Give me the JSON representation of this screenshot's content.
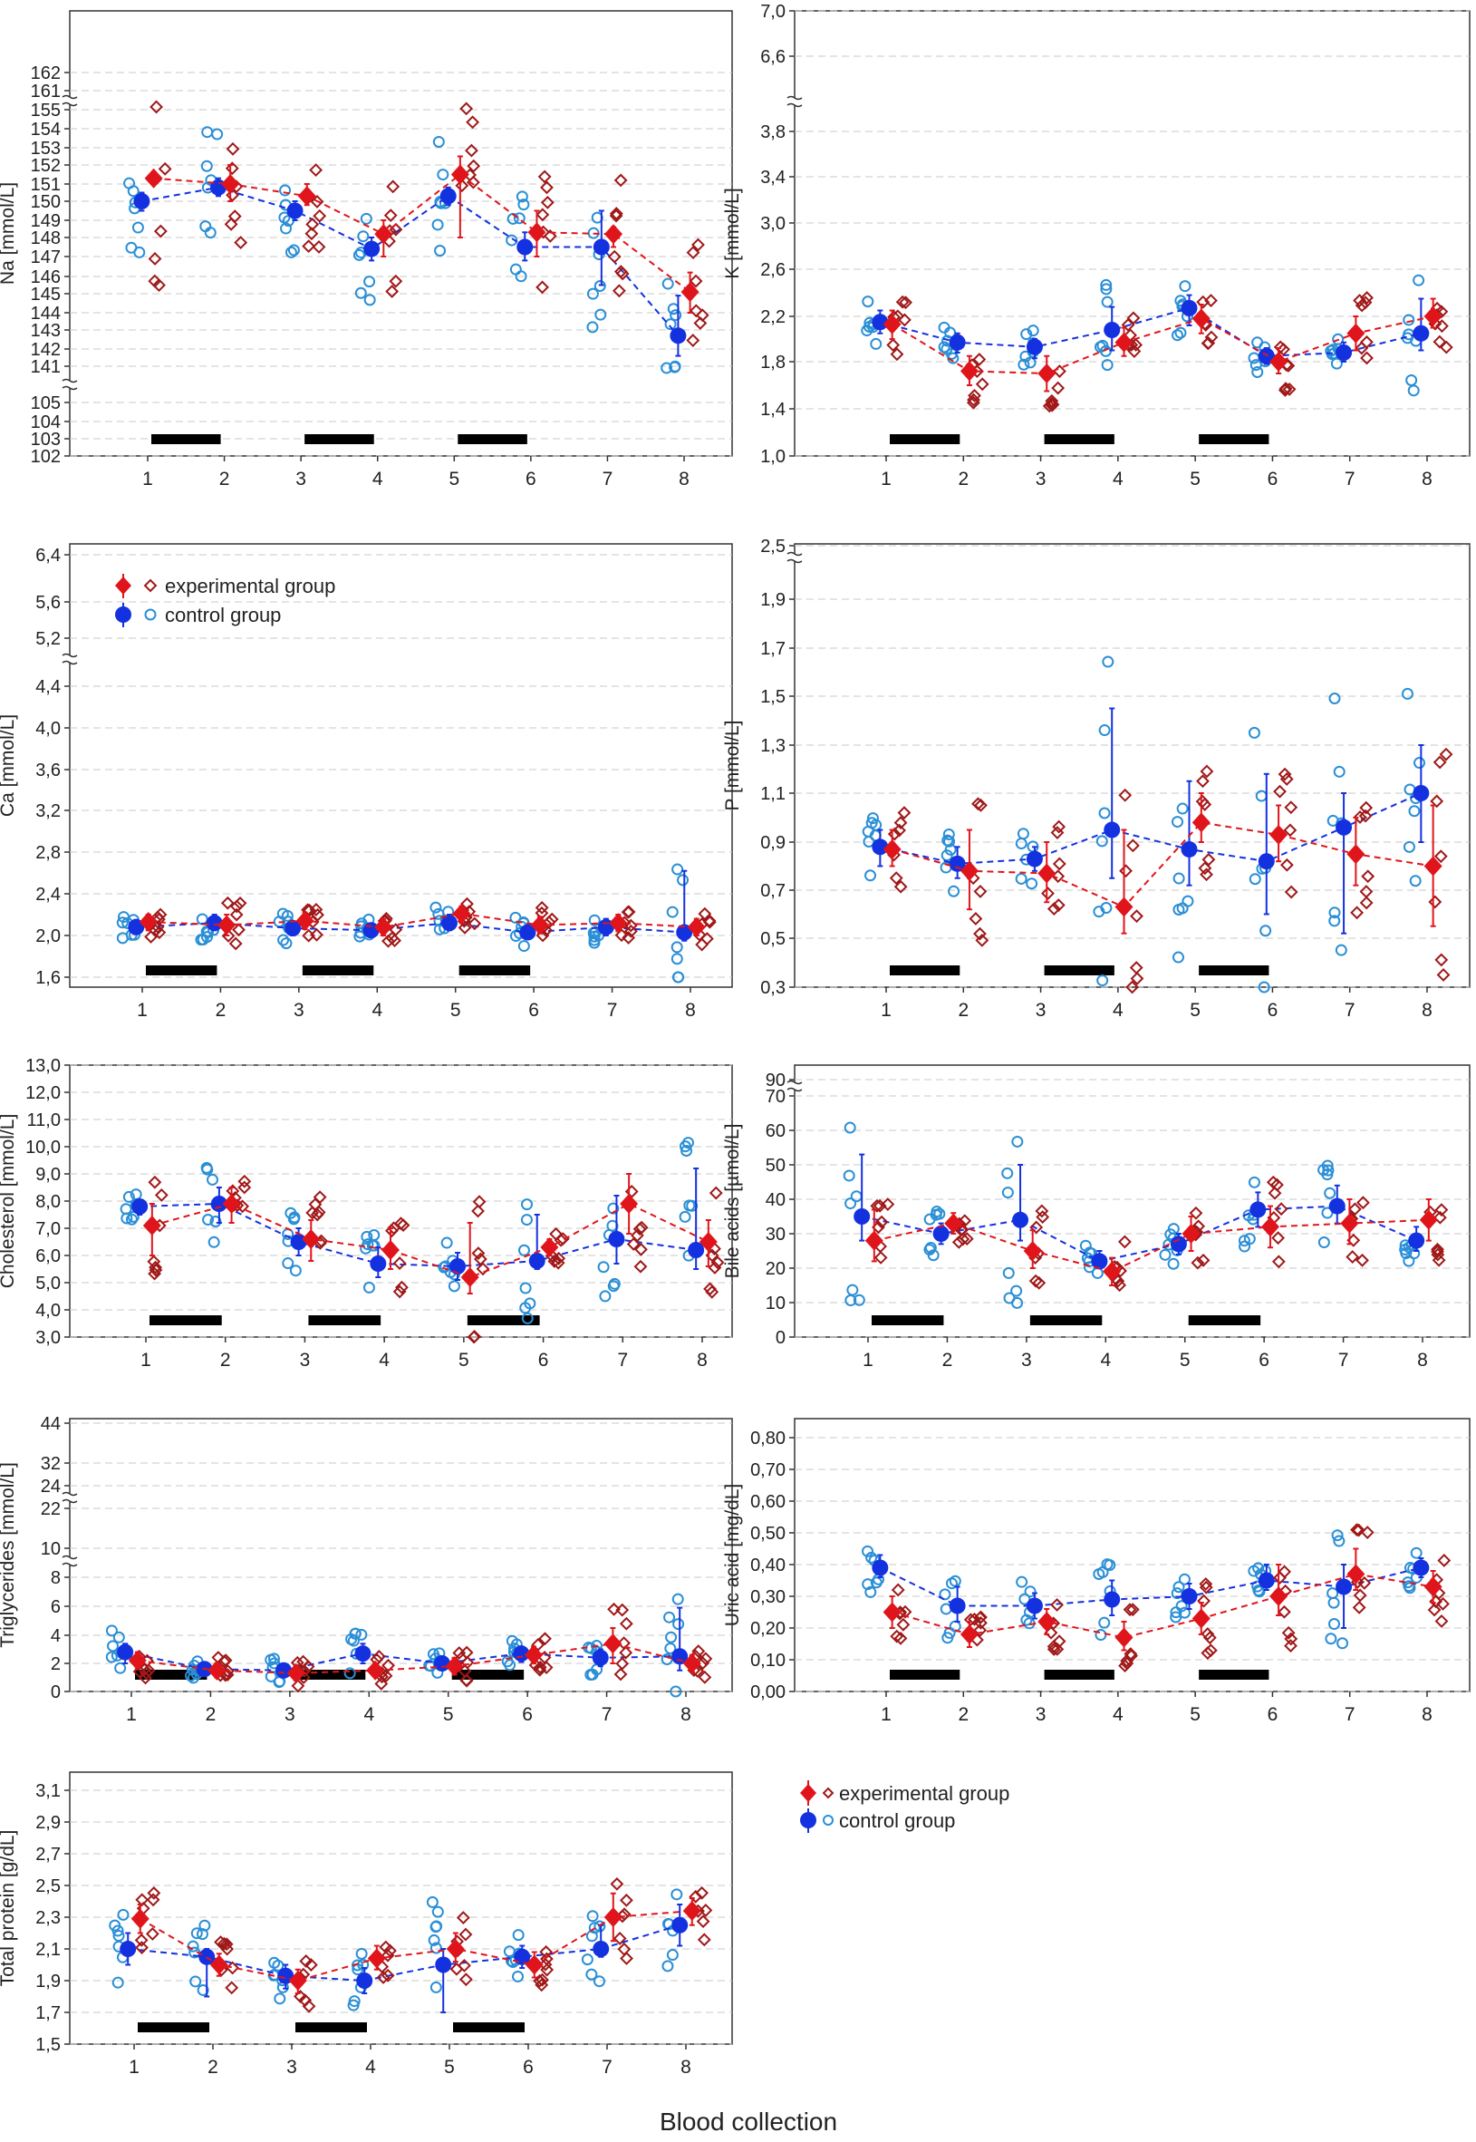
{
  "figure": {
    "xlabel": "Blood collection",
    "legend": {
      "experimental_label": "experimental group",
      "control_label": "control group"
    },
    "colors": {
      "experimental": "#e0151b",
      "experimental_dark": "#a01818",
      "control": "#1431e0",
      "control_light": "#2a8fd6",
      "bar": "#000000",
      "grid": "#c8c8c8"
    }
  },
  "chart_data": [
    {
      "id": "na",
      "type": "scatter",
      "ylabel": "Na [mmol/L]",
      "categories": [
        "1",
        "2",
        "3",
        "4",
        "5",
        "6",
        "7",
        "8"
      ],
      "yticks": [
        102,
        103,
        104,
        105,
        141,
        142,
        143,
        144,
        145,
        146,
        147,
        148,
        149,
        150,
        151,
        152,
        153,
        154,
        155,
        161,
        162
      ],
      "yticklabels": [
        "102",
        "103",
        "104",
        "105",
        "141",
        "142",
        "143",
        "144",
        "145",
        "146",
        "147",
        "148",
        "149",
        "150",
        "151",
        "152",
        "153",
        "154",
        "155",
        "161",
        "162"
      ],
      "series": [
        {
          "name": "experimental group",
          "means": [
            151.3,
            151.0,
            150.3,
            148.2,
            151.5,
            148.3,
            148.2,
            145.1
          ],
          "lower": [
            null,
            150.0,
            149.8,
            147.0,
            148.0,
            147.0,
            147.5,
            144.0
          ],
          "upper": [
            null,
            152.0,
            151.0,
            149.0,
            152.5,
            149.5,
            148.6,
            146.2
          ]
        },
        {
          "name": "control group",
          "means": [
            150.0,
            150.8,
            149.5,
            147.4,
            150.3,
            147.5,
            147.5,
            142.7
          ],
          "lower": [
            149.5,
            150.3,
            149.0,
            146.8,
            149.8,
            146.8,
            145.5,
            141.6
          ],
          "upper": [
            150.5,
            151.3,
            150.0,
            148.0,
            150.8,
            148.3,
            149.5,
            144.9
          ]
        }
      ],
      "training_bars": [
        [
          1,
          2
        ],
        [
          3,
          4
        ],
        [
          5,
          6
        ]
      ]
    },
    {
      "id": "k",
      "type": "scatter",
      "ylabel": "K [mmol/L]",
      "categories": [
        "1",
        "2",
        "3",
        "4",
        "5",
        "6",
        "7",
        "8"
      ],
      "yticks": [
        1.0,
        1.4,
        1.8,
        2.2,
        2.6,
        3.0,
        3.4,
        3.8,
        6.6,
        7.0
      ],
      "yticklabels": [
        "1,0",
        "1,4",
        "1,8",
        "2,2",
        "2,6",
        "3,0",
        "3,4",
        "3,8",
        "6,6",
        "7,0"
      ],
      "series": [
        {
          "name": "experimental group",
          "means": [
            2.13,
            1.72,
            1.7,
            1.97,
            2.18,
            1.8,
            2.05,
            2.2
          ],
          "lower": [
            2.0,
            1.6,
            1.55,
            1.85,
            2.05,
            1.7,
            1.9,
            2.1
          ],
          "upper": [
            2.25,
            1.85,
            1.85,
            2.1,
            2.3,
            1.92,
            2.2,
            2.35
          ]
        },
        {
          "name": "control group",
          "means": [
            2.15,
            1.97,
            1.93,
            2.08,
            2.27,
            1.85,
            1.88,
            2.05
          ],
          "lower": [
            2.05,
            1.88,
            1.83,
            1.9,
            2.12,
            1.78,
            1.8,
            1.9
          ],
          "upper": [
            2.25,
            2.05,
            2.0,
            2.28,
            2.38,
            1.92,
            1.97,
            2.35
          ]
        }
      ],
      "training_bars": [
        [
          1,
          2
        ],
        [
          3,
          4
        ],
        [
          5,
          6
        ]
      ]
    },
    {
      "id": "ca",
      "type": "scatter",
      "ylabel": "Ca [mmol/L]",
      "categories": [
        "1",
        "2",
        "3",
        "4",
        "5",
        "6",
        "7",
        "8"
      ],
      "yticks": [
        1.6,
        2.0,
        2.4,
        2.8,
        3.2,
        3.6,
        4.0,
        4.4,
        5.2,
        5.6,
        6.4
      ],
      "yticklabels": [
        "1,6",
        "2,0",
        "2,4",
        "2,8",
        "3,2",
        "3,6",
        "4,0",
        "4,4",
        "5,2",
        "5,6",
        "6,4"
      ],
      "series": [
        {
          "name": "experimental group",
          "means": [
            2.13,
            2.1,
            2.14,
            2.08,
            2.21,
            2.1,
            2.12,
            2.08
          ],
          "lower": [
            2.05,
            2.0,
            2.06,
            2.0,
            2.12,
            2.02,
            2.04,
            2.0
          ],
          "upper": [
            2.2,
            2.2,
            2.22,
            2.16,
            2.28,
            2.18,
            2.2,
            2.16
          ]
        },
        {
          "name": "control group",
          "means": [
            2.08,
            2.12,
            2.07,
            2.05,
            2.12,
            2.03,
            2.08,
            2.03
          ],
          "lower": [
            2.02,
            2.05,
            2.0,
            2.0,
            2.05,
            1.97,
            2.0,
            1.95
          ],
          "upper": [
            2.15,
            2.2,
            2.14,
            2.1,
            2.2,
            2.1,
            2.16,
            2.62
          ]
        }
      ],
      "training_bars": [
        [
          1,
          2
        ],
        [
          3,
          4
        ],
        [
          5,
          6
        ]
      ]
    },
    {
      "id": "p",
      "type": "scatter",
      "ylabel": "P [mmol/L]",
      "categories": [
        "1",
        "2",
        "3",
        "4",
        "5",
        "6",
        "7",
        "8"
      ],
      "yticks": [
        0.3,
        0.5,
        0.7,
        0.9,
        1.1,
        1.3,
        1.5,
        1.7,
        1.9,
        2.5
      ],
      "yticklabels": [
        "0,3",
        "0,5",
        "0,7",
        "0,9",
        "1,1",
        "1,3",
        "1,5",
        "1,7",
        "1,9",
        "2,5"
      ],
      "series": [
        {
          "name": "experimental group",
          "means": [
            0.87,
            0.78,
            0.77,
            0.63,
            0.98,
            0.93,
            0.85,
            0.8
          ],
          "lower": [
            0.8,
            0.62,
            0.65,
            0.52,
            0.9,
            0.82,
            0.72,
            0.55
          ],
          "upper": [
            0.95,
            0.95,
            0.9,
            0.95,
            1.1,
            1.05,
            1.0,
            1.05
          ]
        },
        {
          "name": "control group",
          "means": [
            0.88,
            0.81,
            0.83,
            0.95,
            0.87,
            0.82,
            0.96,
            1.1
          ],
          "lower": [
            0.8,
            0.75,
            0.78,
            0.75,
            0.72,
            0.6,
            0.52,
            0.9
          ],
          "upper": [
            0.95,
            0.88,
            0.88,
            1.45,
            1.15,
            1.18,
            1.1,
            1.3
          ]
        }
      ],
      "training_bars": [
        [
          1,
          2
        ],
        [
          3,
          4
        ],
        [
          5,
          6
        ]
      ]
    },
    {
      "id": "cholesterol",
      "type": "scatter",
      "ylabel": "Cholesterol [mmol/L]",
      "categories": [
        "1",
        "2",
        "3",
        "4",
        "5",
        "6",
        "7",
        "8"
      ],
      "yticks": [
        3.0,
        4.0,
        5.0,
        6.0,
        7.0,
        8.0,
        9.0,
        10.0,
        11.0,
        12.0,
        13.0
      ],
      "yticklabels": [
        "3,0",
        "4,0",
        "5,0",
        "6,0",
        "7,0",
        "8,0",
        "9,0",
        "10,0",
        "11,0",
        "12,0",
        "13,0"
      ],
      "series": [
        {
          "name": "experimental group",
          "means": [
            7.1,
            7.9,
            6.6,
            6.2,
            5.2,
            6.3,
            7.9,
            6.5
          ],
          "lower": [
            6.0,
            7.2,
            5.8,
            5.5,
            4.6,
            6.0,
            6.8,
            5.6
          ],
          "upper": [
            7.9,
            8.5,
            7.3,
            7.0,
            7.2,
            6.6,
            9.0,
            7.3
          ]
        },
        {
          "name": "control group",
          "means": [
            7.8,
            7.9,
            6.5,
            5.7,
            5.6,
            5.8,
            6.6,
            6.2
          ],
          "lower": [
            7.5,
            7.2,
            6.0,
            5.2,
            5.1,
            5.5,
            5.7,
            5.5
          ],
          "upper": [
            8.0,
            8.5,
            7.0,
            6.3,
            6.1,
            7.5,
            8.2,
            9.2
          ]
        }
      ],
      "training_bars": [
        [
          1,
          2
        ],
        [
          3,
          4
        ],
        [
          5,
          6
        ]
      ]
    },
    {
      "id": "bile",
      "type": "scatter",
      "ylabel": "Bile acids [µmol/L]",
      "categories": [
        "1",
        "2",
        "3",
        "4",
        "5",
        "6",
        "7",
        "8"
      ],
      "yticks": [
        0,
        10,
        20,
        30,
        40,
        50,
        60,
        70,
        90
      ],
      "yticklabels": [
        "0",
        "10",
        "20",
        "30",
        "40",
        "50",
        "60",
        "70",
        "90"
      ],
      "series": [
        {
          "name": "experimental group",
          "means": [
            28,
            33,
            25,
            19,
            30,
            32,
            33,
            34
          ],
          "lower": [
            22,
            30,
            20,
            15,
            25,
            26,
            27,
            28
          ],
          "upper": [
            37,
            36,
            31,
            23,
            35,
            38,
            40,
            40
          ]
        },
        {
          "name": "control group",
          "means": [
            35,
            30,
            34,
            22,
            27,
            37,
            38,
            28
          ],
          "lower": [
            28,
            27,
            28,
            20,
            24,
            32,
            33,
            25
          ],
          "upper": [
            53,
            33,
            50,
            25,
            30,
            42,
            44,
            32
          ]
        }
      ],
      "training_bars": [
        [
          1,
          2
        ],
        [
          3,
          4
        ],
        [
          5,
          6
        ]
      ]
    },
    {
      "id": "tg",
      "type": "scatter",
      "ylabel": "Triglycerides [mmol/L]",
      "categories": [
        "1",
        "2",
        "3",
        "4",
        "5",
        "6",
        "7",
        "8"
      ],
      "yticks": [
        0,
        2,
        4,
        6,
        8,
        10,
        22,
        24,
        32,
        44
      ],
      "yticklabels": [
        "0",
        "2",
        "4",
        "6",
        "8",
        "10",
        "22",
        "24",
        "32",
        "44"
      ],
      "series": [
        {
          "name": "experimental group",
          "means": [
            2.2,
            1.5,
            1.3,
            1.5,
            1.8,
            2.6,
            3.4,
            2.0
          ],
          "lower": [
            1.6,
            1.0,
            0.8,
            1.1,
            1.2,
            2.0,
            2.0,
            1.4
          ],
          "upper": [
            2.8,
            2.0,
            1.8,
            2.0,
            2.4,
            3.2,
            4.5,
            2.6
          ]
        },
        {
          "name": "control group",
          "means": [
            2.8,
            1.6,
            1.5,
            2.7,
            2.0,
            2.7,
            2.4,
            2.5
          ],
          "lower": [
            2.0,
            1.2,
            1.1,
            2.0,
            1.6,
            2.1,
            1.8,
            1.5
          ],
          "upper": [
            3.4,
            2.0,
            1.9,
            3.4,
            2.4,
            3.2,
            3.0,
            5.9
          ]
        }
      ],
      "training_bars": [
        [
          1,
          2
        ],
        [
          3,
          4
        ],
        [
          5,
          6
        ]
      ]
    },
    {
      "id": "uric",
      "type": "scatter",
      "ylabel": "Uric acid [mg/dL]",
      "categories": [
        "1",
        "2",
        "3",
        "4",
        "5",
        "6",
        "7",
        "8"
      ],
      "yticks": [
        0.0,
        0.1,
        0.2,
        0.3,
        0.4,
        0.5,
        0.6,
        0.7,
        0.8
      ],
      "yticklabels": [
        "0,00",
        "0,10",
        "0,20",
        "0,30",
        "0,40",
        "0,50",
        "0,60",
        "0,70",
        "0,80"
      ],
      "series": [
        {
          "name": "experimental group",
          "means": [
            0.25,
            0.18,
            0.22,
            0.17,
            0.23,
            0.3,
            0.37,
            0.33
          ],
          "lower": [
            0.2,
            0.14,
            0.18,
            0.13,
            0.18,
            0.24,
            0.32,
            0.28
          ],
          "upper": [
            0.3,
            0.22,
            0.26,
            0.22,
            0.28,
            0.4,
            0.45,
            0.38
          ]
        },
        {
          "name": "control group",
          "means": [
            0.39,
            0.27,
            0.27,
            0.29,
            0.3,
            0.35,
            0.33,
            0.39
          ],
          "lower": [
            0.36,
            0.22,
            0.23,
            0.24,
            0.26,
            0.32,
            0.2,
            0.36
          ],
          "upper": [
            0.43,
            0.33,
            0.31,
            0.35,
            0.34,
            0.4,
            0.4,
            0.42
          ]
        }
      ],
      "training_bars": [
        [
          1,
          2
        ],
        [
          3,
          4
        ],
        [
          5,
          6
        ]
      ]
    },
    {
      "id": "tp",
      "type": "scatter",
      "ylabel": "Total protein [g/dL]",
      "categories": [
        "1",
        "2",
        "3",
        "4",
        "5",
        "6",
        "7",
        "8"
      ],
      "yticks": [
        1.5,
        1.7,
        1.9,
        2.1,
        2.3,
        2.5,
        2.7,
        2.9,
        3.1
      ],
      "yticklabels": [
        "1,5",
        "1,7",
        "1,9",
        "2,1",
        "2,3",
        "2,5",
        "2,7",
        "2,9",
        "3,1"
      ],
      "series": [
        {
          "name": "experimental group",
          "means": [
            2.29,
            2.0,
            1.9,
            2.04,
            2.1,
            2.0,
            2.3,
            2.34
          ],
          "lower": [
            2.2,
            1.93,
            1.82,
            1.97,
            2.02,
            1.92,
            2.15,
            2.25
          ],
          "upper": [
            2.38,
            2.07,
            1.97,
            2.12,
            2.2,
            2.08,
            2.45,
            2.42
          ]
        },
        {
          "name": "control group",
          "means": [
            2.1,
            2.05,
            1.93,
            1.9,
            2.0,
            2.05,
            2.1,
            2.25
          ],
          "lower": [
            2.0,
            1.8,
            1.85,
            1.82,
            1.7,
            1.98,
            2.05,
            2.12
          ],
          "upper": [
            2.2,
            2.1,
            2.0,
            1.98,
            2.1,
            2.12,
            2.25,
            2.38
          ]
        }
      ],
      "training_bars": [
        [
          1,
          2
        ],
        [
          3,
          4
        ],
        [
          5,
          6
        ]
      ]
    }
  ]
}
